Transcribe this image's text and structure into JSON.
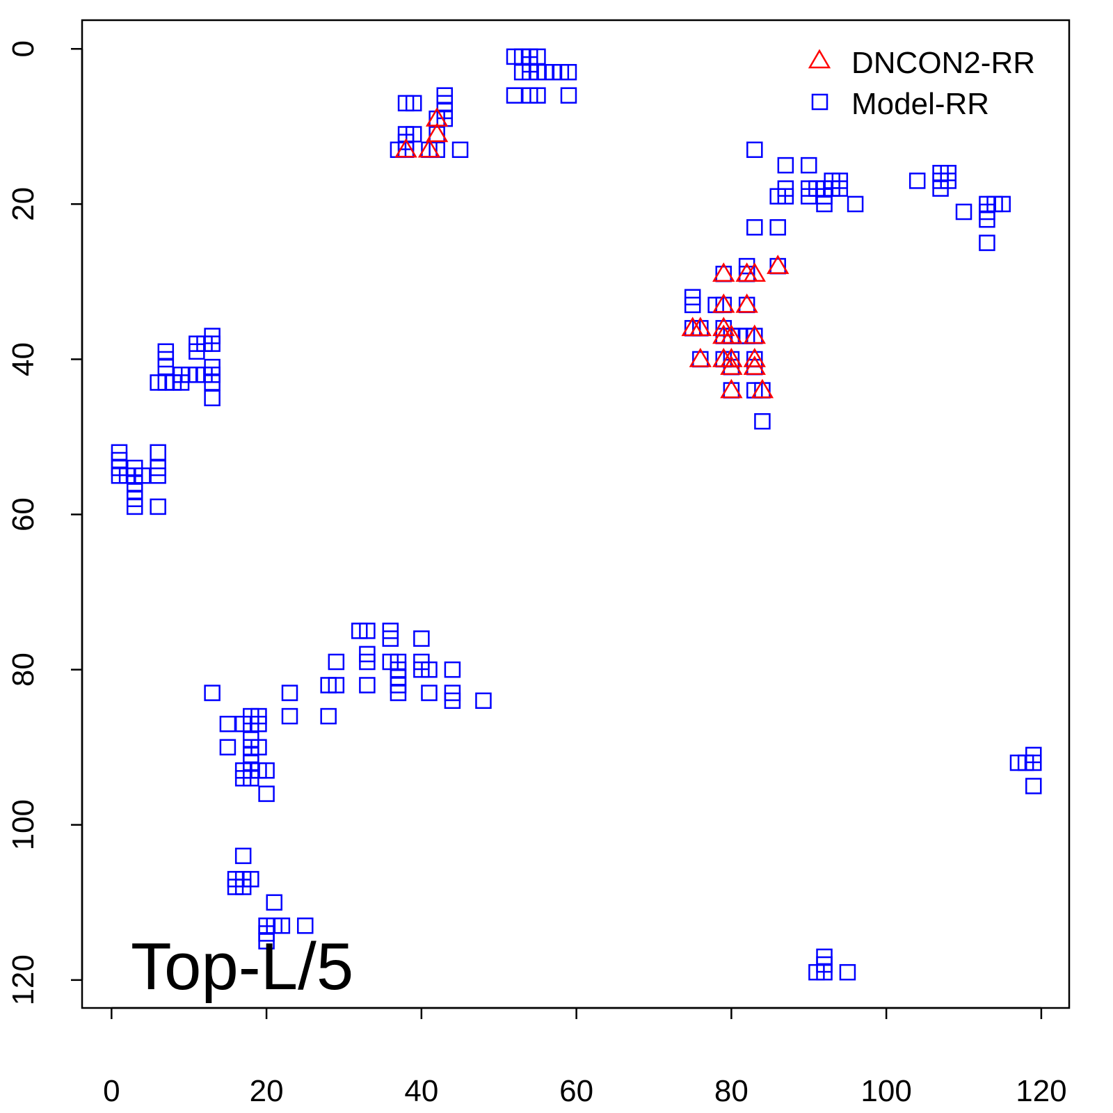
{
  "chart_data": {
    "type": "scatter",
    "title": "",
    "xlabel": "",
    "ylabel": "",
    "xlim": [
      -3.8,
      123.6
    ],
    "ylim": [
      123.6,
      -3.7
    ],
    "y_inverted": true,
    "grid": false,
    "xticks": [
      0,
      20,
      40,
      60,
      80,
      100,
      120
    ],
    "yticks": [
      0,
      20,
      40,
      60,
      80,
      100,
      120
    ],
    "annotation": "Top-L/5",
    "legend_position": "top-right",
    "series": [
      {
        "name": "DNCON2-RR",
        "marker": "triangle",
        "color": "#ff0000",
        "points": [
          [
            42,
            9
          ],
          [
            42,
            11
          ],
          [
            38,
            13
          ],
          [
            41,
            13
          ],
          [
            79,
            29
          ],
          [
            82,
            29
          ],
          [
            83,
            29
          ],
          [
            86,
            28
          ],
          [
            79,
            33
          ],
          [
            82,
            33
          ],
          [
            75,
            36
          ],
          [
            76,
            36
          ],
          [
            79,
            36
          ],
          [
            79,
            37
          ],
          [
            80,
            37
          ],
          [
            83,
            37
          ],
          [
            76,
            40
          ],
          [
            79,
            40
          ],
          [
            80,
            40
          ],
          [
            80,
            41
          ],
          [
            83,
            40
          ],
          [
            83,
            41
          ],
          [
            80,
            44
          ],
          [
            84,
            44
          ]
        ]
      },
      {
        "name": "Model-RR",
        "marker": "square",
        "color": "#0000ff",
        "points": [
          [
            38,
            7
          ],
          [
            39,
            7
          ],
          [
            38,
            11
          ],
          [
            39,
            11
          ],
          [
            38,
            12
          ],
          [
            37,
            13
          ],
          [
            38,
            13
          ],
          [
            41,
            13
          ],
          [
            42,
            13
          ],
          [
            43,
            6
          ],
          [
            43,
            7
          ],
          [
            43,
            8
          ],
          [
            43,
            9
          ],
          [
            45,
            13
          ],
          [
            42,
            9
          ],
          [
            42,
            11
          ],
          [
            52,
            1
          ],
          [
            53,
            1
          ],
          [
            54,
            1
          ],
          [
            55,
            1
          ],
          [
            54,
            2
          ],
          [
            53,
            3
          ],
          [
            54,
            3
          ],
          [
            55,
            3
          ],
          [
            56,
            3
          ],
          [
            57,
            3
          ],
          [
            58,
            3
          ],
          [
            59,
            3
          ],
          [
            52,
            6
          ],
          [
            54,
            6
          ],
          [
            55,
            6
          ],
          [
            59,
            6
          ],
          [
            83,
            13
          ],
          [
            87,
            15
          ],
          [
            90,
            15
          ],
          [
            87,
            18
          ],
          [
            90,
            18
          ],
          [
            91,
            18
          ],
          [
            92,
            18
          ],
          [
            93,
            17
          ],
          [
            94,
            17
          ],
          [
            93,
            18
          ],
          [
            94,
            18
          ],
          [
            86,
            19
          ],
          [
            87,
            19
          ],
          [
            90,
            19
          ],
          [
            92,
            19
          ],
          [
            92,
            20
          ],
          [
            96,
            20
          ],
          [
            83,
            23
          ],
          [
            86,
            23
          ],
          [
            104,
            17
          ],
          [
            107,
            16
          ],
          [
            108,
            16
          ],
          [
            107,
            17
          ],
          [
            108,
            17
          ],
          [
            107,
            18
          ],
          [
            110,
            21
          ],
          [
            113,
            20
          ],
          [
            114,
            20
          ],
          [
            115,
            20
          ],
          [
            113,
            21
          ],
          [
            113,
            22
          ],
          [
            113,
            25
          ],
          [
            75,
            32
          ],
          [
            75,
            33
          ],
          [
            75,
            36
          ],
          [
            76,
            36
          ],
          [
            78,
            33
          ],
          [
            79,
            33
          ],
          [
            82,
            33
          ],
          [
            79,
            29
          ],
          [
            82,
            28
          ],
          [
            82,
            29
          ],
          [
            86,
            28
          ],
          [
            79,
            36
          ],
          [
            79,
            37
          ],
          [
            80,
            37
          ],
          [
            81,
            37
          ],
          [
            82,
            37
          ],
          [
            83,
            37
          ],
          [
            76,
            40
          ],
          [
            79,
            40
          ],
          [
            80,
            40
          ],
          [
            80,
            41
          ],
          [
            83,
            40
          ],
          [
            83,
            41
          ],
          [
            80,
            44
          ],
          [
            83,
            44
          ],
          [
            84,
            44
          ],
          [
            84,
            48
          ],
          [
            7,
            39
          ],
          [
            7,
            40
          ],
          [
            7,
            41
          ],
          [
            6,
            43
          ],
          [
            7,
            43
          ],
          [
            8,
            43
          ],
          [
            9,
            42
          ],
          [
            9,
            43
          ],
          [
            10,
            42
          ],
          [
            11,
            42
          ],
          [
            12,
            42
          ],
          [
            13,
            41
          ],
          [
            13,
            42
          ],
          [
            13,
            43
          ],
          [
            13,
            45
          ],
          [
            11,
            38
          ],
          [
            12,
            38
          ],
          [
            13,
            37
          ],
          [
            13,
            38
          ],
          [
            11,
            39
          ],
          [
            1,
            52
          ],
          [
            1,
            53
          ],
          [
            1,
            54
          ],
          [
            1,
            55
          ],
          [
            2,
            55
          ],
          [
            3,
            54
          ],
          [
            3,
            55
          ],
          [
            3,
            56
          ],
          [
            3,
            57
          ],
          [
            3,
            58
          ],
          [
            3,
            59
          ],
          [
            4,
            55
          ],
          [
            6,
            52
          ],
          [
            6,
            54
          ],
          [
            6,
            55
          ],
          [
            6,
            59
          ],
          [
            13,
            83
          ],
          [
            15,
            87
          ],
          [
            15,
            90
          ],
          [
            17,
            87
          ],
          [
            18,
            87
          ],
          [
            18,
            86
          ],
          [
            19,
            86
          ],
          [
            19,
            87
          ],
          [
            18,
            89
          ],
          [
            18,
            90
          ],
          [
            19,
            90
          ],
          [
            18,
            91
          ],
          [
            18,
            92
          ],
          [
            17,
            93
          ],
          [
            17,
            94
          ],
          [
            18,
            93
          ],
          [
            18,
            94
          ],
          [
            19,
            93
          ],
          [
            20,
            93
          ],
          [
            20,
            96
          ],
          [
            23,
            83
          ],
          [
            23,
            86
          ],
          [
            28,
            82
          ],
          [
            29,
            82
          ],
          [
            29,
            79
          ],
          [
            28,
            86
          ],
          [
            32,
            75
          ],
          [
            33,
            75
          ],
          [
            33,
            78
          ],
          [
            33,
            79
          ],
          [
            33,
            82
          ],
          [
            36,
            75
          ],
          [
            36,
            76
          ],
          [
            36,
            79
          ],
          [
            37,
            79
          ],
          [
            37,
            80
          ],
          [
            37,
            81
          ],
          [
            37,
            82
          ],
          [
            37,
            83
          ],
          [
            40,
            76
          ],
          [
            40,
            79
          ],
          [
            40,
            80
          ],
          [
            41,
            80
          ],
          [
            41,
            83
          ],
          [
            44,
            80
          ],
          [
            44,
            83
          ],
          [
            44,
            84
          ],
          [
            48,
            84
          ],
          [
            17,
            104
          ],
          [
            16,
            107
          ],
          [
            17,
            107
          ],
          [
            18,
            107
          ],
          [
            16,
            108
          ],
          [
            17,
            108
          ],
          [
            21,
            110
          ],
          [
            20,
            113
          ],
          [
            21,
            113
          ],
          [
            22,
            113
          ],
          [
            25,
            113
          ],
          [
            20,
            114
          ],
          [
            20,
            115
          ],
          [
            117,
            92
          ],
          [
            118,
            92
          ],
          [
            119,
            91
          ],
          [
            119,
            92
          ],
          [
            119,
            95
          ],
          [
            92,
            117
          ],
          [
            92,
            118
          ],
          [
            91,
            119
          ],
          [
            92,
            119
          ],
          [
            95,
            119
          ]
        ]
      }
    ]
  }
}
